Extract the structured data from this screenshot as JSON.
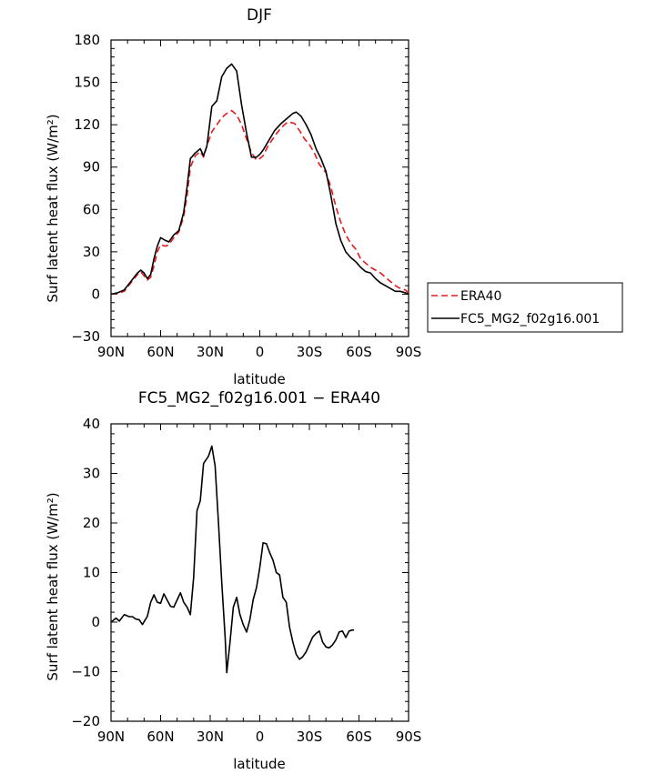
{
  "chart_data": [
    {
      "type": "line",
      "title": "DJF",
      "xlabel": "latitude",
      "ylabel": "Surf latent heat flux (W/m²)",
      "xlim": [
        90,
        -90
      ],
      "ylim": [
        -30,
        180
      ],
      "x_ticks": [
        {
          "value": 90,
          "label": "90N"
        },
        {
          "value": 60,
          "label": "60N"
        },
        {
          "value": 30,
          "label": "30N"
        },
        {
          "value": 0,
          "label": "0"
        },
        {
          "value": -30,
          "label": "30S"
        },
        {
          "value": -60,
          "label": "60S"
        },
        {
          "value": -90,
          "label": "90S"
        }
      ],
      "y_ticks": [
        -30,
        0,
        30,
        60,
        90,
        120,
        150,
        180
      ],
      "legend": "right",
      "series": [
        {
          "name": "ERA40",
          "color": "#e8191c",
          "dash": "dashed",
          "points": [
            [
              90,
              0
            ],
            [
              86,
              0.5
            ],
            [
              82,
              2
            ],
            [
              78,
              8
            ],
            [
              74,
              14
            ],
            [
              72,
              16
            ],
            [
              70,
              13
            ],
            [
              68,
              10
            ],
            [
              66,
              12
            ],
            [
              64,
              20
            ],
            [
              62,
              30
            ],
            [
              60,
              35
            ],
            [
              57,
              34
            ],
            [
              55,
              35
            ],
            [
              52,
              40
            ],
            [
              49,
              44
            ],
            [
              46,
              55
            ],
            [
              44,
              70
            ],
            [
              42,
              90
            ],
            [
              39,
              98
            ],
            [
              36,
              101
            ],
            [
              34,
              97
            ],
            [
              32,
              105
            ],
            [
              29,
              115
            ],
            [
              26,
              120
            ],
            [
              23,
              125
            ],
            [
              20,
              128
            ],
            [
              17,
              130
            ],
            [
              14,
              127
            ],
            [
              11,
              120
            ],
            [
              8,
              110
            ],
            [
              5,
              100
            ],
            [
              2,
              95
            ],
            [
              0,
              96
            ],
            [
              -2,
              98
            ],
            [
              -5,
              105
            ],
            [
              -9,
              112
            ],
            [
              -13,
              118
            ],
            [
              -17,
              122
            ],
            [
              -21,
              121
            ],
            [
              -24,
              116
            ],
            [
              -27,
              110
            ],
            [
              -30,
              106
            ],
            [
              -33,
              100
            ],
            [
              -36,
              92
            ],
            [
              -40,
              86
            ],
            [
              -43,
              76
            ],
            [
              -46,
              62
            ],
            [
              -49,
              51
            ],
            [
              -52,
              42
            ],
            [
              -55,
              36
            ],
            [
              -58,
              32
            ],
            [
              -61,
              25
            ],
            [
              -64,
              22
            ],
            [
              -67,
              19
            ],
            [
              -70,
              17
            ],
            [
              -73,
              15
            ],
            [
              -76,
              12
            ],
            [
              -79,
              9
            ],
            [
              -82,
              6
            ],
            [
              -85,
              4
            ],
            [
              -88,
              3
            ],
            [
              -90,
              1
            ]
          ]
        },
        {
          "name": "FC5_MG2_f02g16.001",
          "color": "#000000",
          "dash": "solid",
          "points": [
            [
              90,
              0
            ],
            [
              86,
              1
            ],
            [
              82,
              3
            ],
            [
              78,
              9
            ],
            [
              74,
              15
            ],
            [
              72,
              17
            ],
            [
              70,
              15
            ],
            [
              68,
              11
            ],
            [
              66,
              14
            ],
            [
              64,
              25
            ],
            [
              62,
              34
            ],
            [
              60,
              40
            ],
            [
              57,
              38
            ],
            [
              55,
              37
            ],
            [
              52,
              42
            ],
            [
              49,
              45
            ],
            [
              46,
              58
            ],
            [
              44,
              76
            ],
            [
              42,
              96
            ],
            [
              39,
              100
            ],
            [
              36,
              103
            ],
            [
              34,
              98
            ],
            [
              32,
              105
            ],
            [
              29,
              133
            ],
            [
              26,
              137
            ],
            [
              23,
              154
            ],
            [
              20,
              160
            ],
            [
              17,
              163
            ],
            [
              14,
              158
            ],
            [
              11,
              134
            ],
            [
              8,
              114
            ],
            [
              5,
              97
            ],
            [
              2,
              97
            ],
            [
              0,
              99
            ],
            [
              -2,
              102
            ],
            [
              -5,
              108
            ],
            [
              -9,
              116
            ],
            [
              -13,
              121
            ],
            [
              -17,
              125
            ],
            [
              -20,
              128
            ],
            [
              -22,
              129
            ],
            [
              -25,
              126
            ],
            [
              -28,
              120
            ],
            [
              -31,
              113
            ],
            [
              -34,
              103
            ],
            [
              -37,
              96
            ],
            [
              -40,
              87
            ],
            [
              -43,
              70
            ],
            [
              -46,
              50
            ],
            [
              -49,
              38
            ],
            [
              -52,
              30
            ],
            [
              -55,
              26
            ],
            [
              -58,
              23
            ],
            [
              -61,
              19
            ],
            [
              -64,
              16
            ],
            [
              -67,
              15
            ],
            [
              -70,
              11
            ],
            [
              -73,
              8
            ],
            [
              -76,
              6
            ],
            [
              -79,
              4
            ],
            [
              -82,
              2
            ],
            [
              -85,
              2
            ],
            [
              -88,
              1
            ],
            [
              -90,
              0
            ]
          ]
        }
      ]
    },
    {
      "type": "line",
      "title": "FC5_MG2_f02g16.001 − ERA40",
      "xlabel": "latitude",
      "ylabel": "Surf latent heat flux (W/m²)",
      "xlim": [
        90,
        -90
      ],
      "ylim": [
        -20,
        40
      ],
      "x_ticks": [
        {
          "value": 90,
          "label": "90N"
        },
        {
          "value": 60,
          "label": "60N"
        },
        {
          "value": 30,
          "label": "30N"
        },
        {
          "value": 0,
          "label": "0"
        },
        {
          "value": -30,
          "label": "30S"
        },
        {
          "value": -60,
          "label": "60S"
        },
        {
          "value": -90,
          "label": "90S"
        }
      ],
      "y_ticks": [
        -20,
        -10,
        0,
        10,
        20,
        30,
        40
      ],
      "series": [
        {
          "color": "#000000",
          "dash": "solid",
          "points": [
            [
              90,
              0
            ],
            [
              87,
              0.8
            ],
            [
              85,
              0.2
            ],
            [
              82,
              1.5
            ],
            [
              79,
              1.1
            ],
            [
              77,
              1.1
            ],
            [
              75,
              0.6
            ],
            [
              73,
              0.5
            ],
            [
              71,
              -0.5
            ],
            [
              68,
              1.2
            ],
            [
              66,
              4
            ],
            [
              64,
              5.5
            ],
            [
              62,
              4
            ],
            [
              60,
              3.8
            ],
            [
              58,
              5.7
            ],
            [
              56,
              4.4
            ],
            [
              54,
              3.2
            ],
            [
              52,
              3
            ],
            [
              50,
              4.5
            ],
            [
              48,
              5.9
            ],
            [
              46,
              4
            ],
            [
              44,
              3
            ],
            [
              42,
              1.5
            ],
            [
              40,
              9
            ],
            [
              38,
              22.5
            ],
            [
              36,
              24.5
            ],
            [
              34,
              32
            ],
            [
              31,
              33.5
            ],
            [
              29,
              35.5
            ],
            [
              27,
              31.5
            ],
            [
              25,
              20
            ],
            [
              23,
              8
            ],
            [
              21,
              -3
            ],
            [
              20,
              -10.2
            ],
            [
              18,
              -4
            ],
            [
              16,
              3
            ],
            [
              14,
              5
            ],
            [
              12,
              1.5
            ],
            [
              10,
              -0.5
            ],
            [
              8,
              -2
            ],
            [
              6,
              0.5
            ],
            [
              4,
              4.5
            ],
            [
              2,
              7
            ],
            [
              0,
              11
            ],
            [
              -2,
              16
            ],
            [
              -4,
              15.8
            ],
            [
              -6,
              14
            ],
            [
              -8,
              12.5
            ],
            [
              -10,
              10
            ],
            [
              -12,
              9.5
            ],
            [
              -14,
              5
            ],
            [
              -16,
              4
            ],
            [
              -18,
              -1
            ],
            [
              -20,
              -4
            ],
            [
              -22,
              -6.5
            ],
            [
              -24,
              -7.5
            ],
            [
              -26,
              -7
            ],
            [
              -28,
              -6
            ],
            [
              -30,
              -4.5
            ],
            [
              -32,
              -3
            ],
            [
              -34,
              -2.3
            ],
            [
              -36,
              -1.8
            ],
            [
              -38,
              -4
            ],
            [
              -40,
              -5
            ],
            [
              -42,
              -5.2
            ],
            [
              -44,
              -4.6
            ],
            [
              -46,
              -3.6
            ],
            [
              -48,
              -2
            ],
            [
              -50,
              -1.8
            ],
            [
              -52,
              -3.1
            ],
            [
              -54,
              -1.8
            ],
            [
              -56,
              -1.6
            ],
            [
              -57,
              -1.6
            ]
          ]
        }
      ]
    }
  ]
}
